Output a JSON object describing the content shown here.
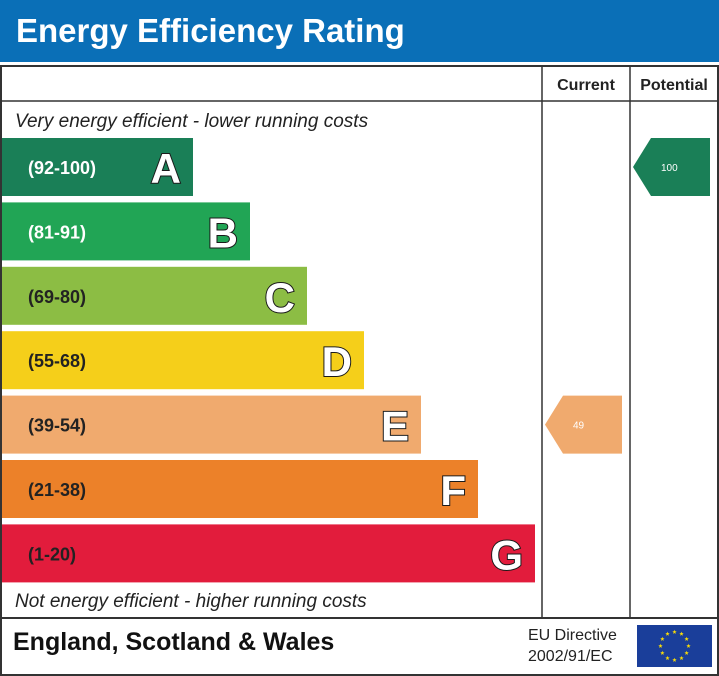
{
  "header": {
    "title": "Energy Efficiency Rating"
  },
  "columns": {
    "current": "Current",
    "potential": "Potential"
  },
  "chart_data": {
    "type": "bar",
    "top_text": "Very energy efficient - lower running costs",
    "bottom_text": "Not energy efficient - higher running costs",
    "bands": [
      {
        "range": "(92-100)",
        "letter": "A",
        "color": "#1a7f57",
        "range_color": "#ffffff"
      },
      {
        "range": "(81-91)",
        "letter": "B",
        "color": "#21a555",
        "range_color": "#ffffff"
      },
      {
        "range": "(69-80)",
        "letter": "C",
        "color": "#8cbd44",
        "range_color": "#222222"
      },
      {
        "range": "(55-68)",
        "letter": "D",
        "color": "#f5cf1a",
        "range_color": "#222222"
      },
      {
        "range": "(39-54)",
        "letter": "E",
        "color": "#f0aa6e",
        "range_color": "#222222"
      },
      {
        "range": "(21-38)",
        "letter": "F",
        "color": "#ec8129",
        "range_color": "#222222"
      },
      {
        "range": "(1-20)",
        "letter": "G",
        "color": "#e21c3c",
        "range_color": "#222222"
      }
    ],
    "current": {
      "value": 49,
      "band": "E",
      "color": "#f0aa6e"
    },
    "potential": {
      "value": 100,
      "band": "A",
      "color": "#1a7f57"
    }
  },
  "footer": {
    "region": "England, Scotland & Wales",
    "directive_line1": "EU Directive",
    "directive_line2": "2002/91/EC"
  },
  "icons": {
    "flag": "eu-flag-icon"
  }
}
